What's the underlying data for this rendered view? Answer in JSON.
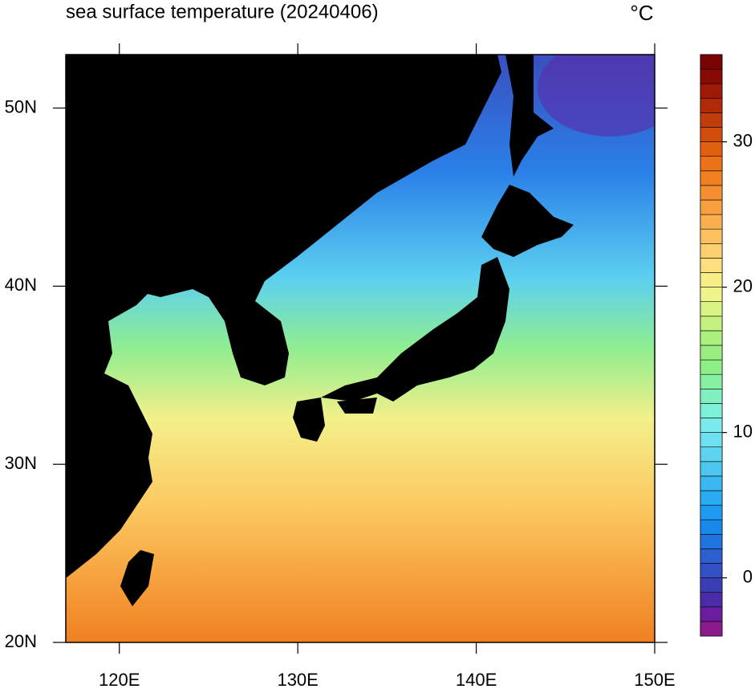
{
  "chart_data": {
    "type": "contour-map",
    "title": "sea surface temperature (20240406)",
    "units": "°C",
    "xlim": [
      117,
      150
    ],
    "ylim": [
      20,
      53
    ],
    "xticks": [
      {
        "value": 120,
        "label": "120E"
      },
      {
        "value": 130,
        "label": "130E"
      },
      {
        "value": 140,
        "label": "140E"
      },
      {
        "value": 150,
        "label": "150E"
      }
    ],
    "yticks": [
      {
        "value": 20,
        "label": "20N"
      },
      {
        "value": 30,
        "label": "30N"
      },
      {
        "value": 40,
        "label": "40N"
      },
      {
        "value": 50,
        "label": "50N"
      }
    ],
    "colorbar": {
      "lim": [
        -4,
        36
      ],
      "ticks": [
        0,
        10,
        20,
        30
      ],
      "colors": [
        "#8b1a8b",
        "#6a1e9e",
        "#4b2ca8",
        "#3a3fb6",
        "#3350c4",
        "#2c5fd0",
        "#1f74e0",
        "#1a87ea",
        "#1e9af0",
        "#2aacf2",
        "#3ab8f0",
        "#4ac6ef",
        "#5cd4f0",
        "#6ee0f0",
        "#7aeaea",
        "#7ef0d8",
        "#80f0c0",
        "#86f0a0",
        "#8cef88",
        "#9aee80",
        "#aef07e",
        "#c4f280",
        "#daf484",
        "#eef48a",
        "#f8ee88",
        "#fce080",
        "#fcd070",
        "#fcc060",
        "#fbb050",
        "#f8a040",
        "#f49030",
        "#f08020",
        "#ec7218",
        "#e06010",
        "#d04e0c",
        "#c03c0a",
        "#b02a08",
        "#9c1a06",
        "#880a04",
        "#780404"
      ]
    }
  }
}
